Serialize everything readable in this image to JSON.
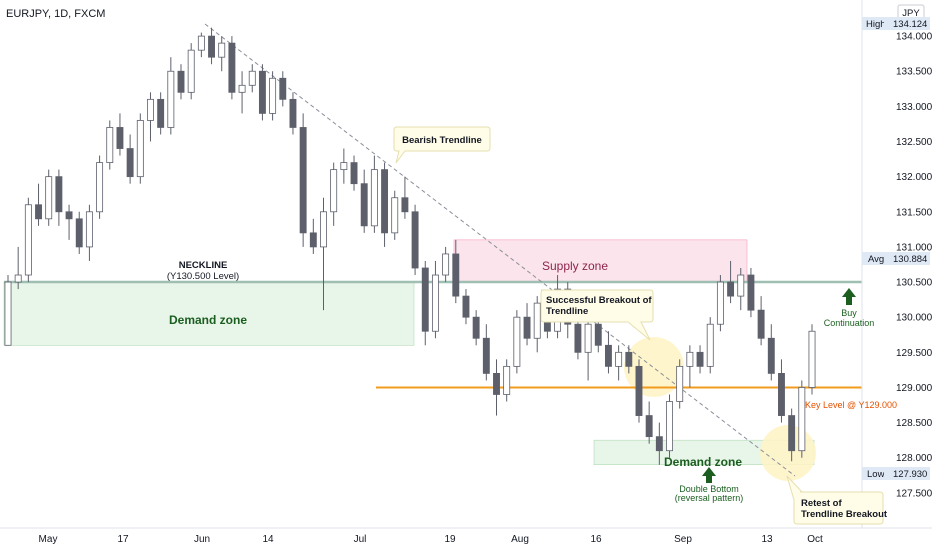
{
  "header": {
    "symbol": "EURJPY, 1D, FXCM",
    "currency": "JPY"
  },
  "colors": {
    "up_candle": "#ffffff",
    "down_candle": "#5d606b",
    "candle_border": "#5d606b",
    "supply_fill": "#fce4ec",
    "supply_border": "#f48fb1",
    "supply_text": "#8e244d",
    "demand_fill": "#e8f5e9",
    "demand_border": "#a5d6a7",
    "demand_text": "#1b5e20",
    "neckline": "#9fbfb3",
    "key_level": "#f29c1f",
    "key_text": "#e65100",
    "trendline": "#8a8f99",
    "circle_fill": "#fff3c4",
    "arrow_green": "#1b5e20"
  },
  "annotations": {
    "neckline": "NECKLINE",
    "neckline_sub": "(Y130.500 Level)",
    "demand_zone_left": "Demand zone",
    "demand_zone_right": "Demand zone",
    "supply_zone": "Supply zone",
    "bearish_trendline": "Bearish Trendline",
    "breakout_line1": "Successful Breakout of",
    "breakout_line2": "Trendline",
    "key_level": "Key Level @ Y129.000",
    "buy_line1": "Buy",
    "buy_line2": "Continuation",
    "double_bottom_line1": "Double Bottom",
    "double_bottom_line2": "(reversal pattern)",
    "retest_line1": "Retest of",
    "retest_line2": "Trendline Breakout"
  },
  "price_badges": {
    "high_label": "High",
    "high_value": "134.124",
    "avg_label": "Avg",
    "avg_value": "130.884",
    "low_label": "Low",
    "low_value": "127.930"
  },
  "chart_data": {
    "type": "candlestick",
    "title": "EURJPY, 1D, FXCM",
    "ylim": [
      127.0,
      134.4
    ],
    "y_ticks": [
      "134.000",
      "133.500",
      "133.000",
      "132.500",
      "132.000",
      "131.500",
      "131.000",
      "130.500",
      "130.000",
      "129.500",
      "129.000",
      "128.500",
      "128.000",
      "127.500"
    ],
    "x_ticks": [
      "May",
      "17",
      "Jun",
      "14",
      "Jul",
      "19",
      "Aug",
      "16",
      "Sep",
      "13",
      "Oct"
    ],
    "levels": {
      "neckline": 130.5,
      "key_level": 129.0
    },
    "zones": {
      "supply": [
        130.5,
        131.1
      ],
      "demand_left": [
        129.6,
        130.5
      ],
      "demand_right": [
        127.9,
        128.25
      ]
    },
    "candles": [
      {
        "o": 129.6,
        "h": 130.6,
        "l": 129.6,
        "c": 130.5
      },
      {
        "o": 130.5,
        "h": 131.0,
        "l": 130.4,
        "c": 130.6
      },
      {
        "o": 130.6,
        "h": 131.7,
        "l": 130.5,
        "c": 131.6
      },
      {
        "o": 131.6,
        "h": 131.9,
        "l": 131.3,
        "c": 131.4
      },
      {
        "o": 131.4,
        "h": 132.1,
        "l": 131.3,
        "c": 132.0
      },
      {
        "o": 132.0,
        "h": 132.1,
        "l": 131.3,
        "c": 131.5
      },
      {
        "o": 131.5,
        "h": 131.6,
        "l": 131.1,
        "c": 131.4
      },
      {
        "o": 131.4,
        "h": 131.5,
        "l": 130.9,
        "c": 131.0
      },
      {
        "o": 131.0,
        "h": 131.6,
        "l": 130.8,
        "c": 131.5
      },
      {
        "o": 131.5,
        "h": 132.3,
        "l": 131.4,
        "c": 132.2
      },
      {
        "o": 132.2,
        "h": 132.8,
        "l": 132.1,
        "c": 132.7
      },
      {
        "o": 132.7,
        "h": 132.9,
        "l": 132.3,
        "c": 132.4
      },
      {
        "o": 132.4,
        "h": 132.6,
        "l": 131.9,
        "c": 132.0
      },
      {
        "o": 132.0,
        "h": 132.9,
        "l": 131.9,
        "c": 132.8
      },
      {
        "o": 132.8,
        "h": 133.2,
        "l": 132.5,
        "c": 133.1
      },
      {
        "o": 133.1,
        "h": 133.2,
        "l": 132.6,
        "c": 132.7
      },
      {
        "o": 132.7,
        "h": 133.7,
        "l": 132.6,
        "c": 133.5
      },
      {
        "o": 133.5,
        "h": 133.6,
        "l": 133.1,
        "c": 133.2
      },
      {
        "o": 133.2,
        "h": 133.9,
        "l": 133.1,
        "c": 133.8
      },
      {
        "o": 133.8,
        "h": 134.05,
        "l": 133.7,
        "c": 134.0
      },
      {
        "o": 134.0,
        "h": 134.12,
        "l": 133.6,
        "c": 133.7
      },
      {
        "o": 133.7,
        "h": 134.0,
        "l": 133.5,
        "c": 133.9
      },
      {
        "o": 133.9,
        "h": 134.0,
        "l": 133.1,
        "c": 133.2
      },
      {
        "o": 133.2,
        "h": 133.5,
        "l": 132.9,
        "c": 133.3
      },
      {
        "o": 133.3,
        "h": 133.6,
        "l": 133.2,
        "c": 133.5
      },
      {
        "o": 133.5,
        "h": 133.6,
        "l": 132.8,
        "c": 132.9
      },
      {
        "o": 132.9,
        "h": 133.5,
        "l": 132.8,
        "c": 133.4
      },
      {
        "o": 133.4,
        "h": 133.5,
        "l": 133.0,
        "c": 133.1
      },
      {
        "o": 133.1,
        "h": 133.2,
        "l": 132.6,
        "c": 132.7
      },
      {
        "o": 132.7,
        "h": 132.9,
        "l": 131.0,
        "c": 131.2
      },
      {
        "o": 131.2,
        "h": 131.4,
        "l": 130.9,
        "c": 131.0
      },
      {
        "o": 131.0,
        "h": 131.7,
        "l": 130.1,
        "c": 131.5
      },
      {
        "o": 131.5,
        "h": 132.2,
        "l": 131.3,
        "c": 132.1
      },
      {
        "o": 132.1,
        "h": 132.4,
        "l": 131.9,
        "c": 132.2
      },
      {
        "o": 132.2,
        "h": 132.3,
        "l": 131.8,
        "c": 131.9
      },
      {
        "o": 131.9,
        "h": 132.1,
        "l": 131.2,
        "c": 131.3
      },
      {
        "o": 131.3,
        "h": 132.3,
        "l": 131.2,
        "c": 132.1
      },
      {
        "o": 132.1,
        "h": 132.2,
        "l": 131.0,
        "c": 131.2
      },
      {
        "o": 131.2,
        "h": 131.8,
        "l": 131.1,
        "c": 131.7
      },
      {
        "o": 131.7,
        "h": 132.0,
        "l": 131.4,
        "c": 131.5
      },
      {
        "o": 131.5,
        "h": 131.6,
        "l": 130.6,
        "c": 130.7
      },
      {
        "o": 130.7,
        "h": 130.8,
        "l": 129.6,
        "c": 129.8
      },
      {
        "o": 129.8,
        "h": 130.8,
        "l": 129.7,
        "c": 130.6
      },
      {
        "o": 130.6,
        "h": 131.0,
        "l": 130.5,
        "c": 130.9
      },
      {
        "o": 130.9,
        "h": 131.1,
        "l": 130.2,
        "c": 130.3
      },
      {
        "o": 130.3,
        "h": 130.4,
        "l": 129.9,
        "c": 130.0
      },
      {
        "o": 130.0,
        "h": 130.1,
        "l": 129.6,
        "c": 129.7
      },
      {
        "o": 129.7,
        "h": 129.9,
        "l": 129.1,
        "c": 129.2
      },
      {
        "o": 129.2,
        "h": 129.4,
        "l": 128.6,
        "c": 128.9
      },
      {
        "o": 128.9,
        "h": 129.4,
        "l": 128.8,
        "c": 129.3
      },
      {
        "o": 129.3,
        "h": 130.1,
        "l": 129.2,
        "c": 130.0
      },
      {
        "o": 130.0,
        "h": 130.2,
        "l": 129.6,
        "c": 129.7
      },
      {
        "o": 129.7,
        "h": 130.3,
        "l": 129.5,
        "c": 130.2
      },
      {
        "o": 130.2,
        "h": 130.3,
        "l": 129.7,
        "c": 129.8
      },
      {
        "o": 129.8,
        "h": 130.6,
        "l": 129.7,
        "c": 130.4
      },
      {
        "o": 130.4,
        "h": 130.5,
        "l": 129.7,
        "c": 129.9
      },
      {
        "o": 129.9,
        "h": 130.2,
        "l": 129.4,
        "c": 129.5
      },
      {
        "o": 129.5,
        "h": 130.0,
        "l": 129.1,
        "c": 129.9
      },
      {
        "o": 129.9,
        "h": 130.1,
        "l": 129.5,
        "c": 129.6
      },
      {
        "o": 129.6,
        "h": 129.8,
        "l": 129.2,
        "c": 129.3
      },
      {
        "o": 129.3,
        "h": 129.6,
        "l": 129.1,
        "c": 129.5
      },
      {
        "o": 129.5,
        "h": 129.6,
        "l": 129.2,
        "c": 129.3
      },
      {
        "o": 129.3,
        "h": 129.4,
        "l": 128.5,
        "c": 128.6
      },
      {
        "o": 128.6,
        "h": 128.8,
        "l": 128.2,
        "c": 128.3
      },
      {
        "o": 128.3,
        "h": 128.5,
        "l": 127.9,
        "c": 128.1
      },
      {
        "o": 128.1,
        "h": 128.9,
        "l": 128.0,
        "c": 128.8
      },
      {
        "o": 128.8,
        "h": 129.4,
        "l": 128.7,
        "c": 129.3
      },
      {
        "o": 129.3,
        "h": 129.6,
        "l": 129.0,
        "c": 129.5
      },
      {
        "o": 129.5,
        "h": 129.6,
        "l": 129.2,
        "c": 129.3
      },
      {
        "o": 129.3,
        "h": 130.0,
        "l": 129.2,
        "c": 129.9
      },
      {
        "o": 129.9,
        "h": 130.6,
        "l": 129.8,
        "c": 130.5
      },
      {
        "o": 130.5,
        "h": 130.8,
        "l": 130.2,
        "c": 130.3
      },
      {
        "o": 130.3,
        "h": 130.7,
        "l": 130.1,
        "c": 130.6
      },
      {
        "o": 130.6,
        "h": 130.7,
        "l": 130.0,
        "c": 130.1
      },
      {
        "o": 130.1,
        "h": 130.3,
        "l": 129.6,
        "c": 129.7
      },
      {
        "o": 129.7,
        "h": 129.9,
        "l": 129.1,
        "c": 129.2
      },
      {
        "o": 129.2,
        "h": 129.4,
        "l": 128.5,
        "c": 128.6
      },
      {
        "o": 128.6,
        "h": 128.7,
        "l": 127.95,
        "c": 128.1
      },
      {
        "o": 128.1,
        "h": 129.1,
        "l": 128.0,
        "c": 129.0
      },
      {
        "o": 129.0,
        "h": 129.9,
        "l": 128.9,
        "c": 129.8
      }
    ]
  }
}
